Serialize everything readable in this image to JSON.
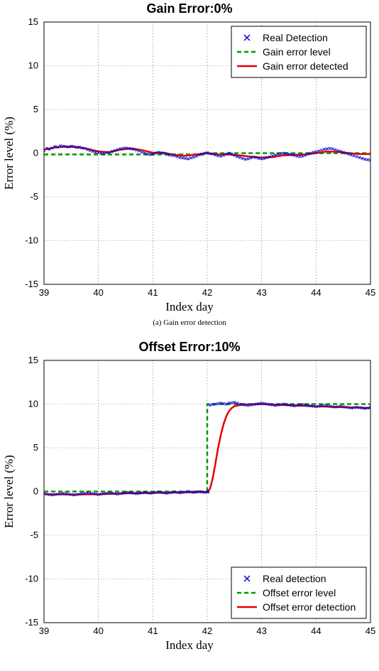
{
  "background_color": "#ffffff",
  "chart_a": {
    "type": "line",
    "title": "Gain Error:0%",
    "title_fontsize": 18,
    "title_fontweight": "bold",
    "caption": "(a) Gain error detection",
    "xlabel": "Index day",
    "ylabel": "Error level (%)",
    "label_fontsize": 17,
    "tick_fontsize": 13,
    "xlim": [
      39,
      45
    ],
    "ylim": [
      -15,
      15
    ],
    "xtick_step": 1,
    "ytick_step": 5,
    "grid_color": "#404040",
    "grid_dash": "1,3",
    "axis_color": "#000000",
    "plot_bg": "#ffffff",
    "legend": {
      "position": "top-right",
      "border_color": "#000000",
      "bg_color": "#ffffff",
      "fontsize": 14,
      "items": [
        {
          "label": "Real Detection",
          "type": "marker",
          "marker": "x",
          "color": "#0000cc"
        },
        {
          "label": "Gain error level",
          "type": "line",
          "dash": "6,4",
          "width": 2.5,
          "color": "#009900"
        },
        {
          "label": "Gain error detected",
          "type": "line",
          "dash": "none",
          "width": 2.5,
          "color": "#e60000"
        }
      ]
    },
    "series_real": {
      "name": "Real Detection",
      "color": "#0000cc",
      "marker": "x",
      "marker_size": 3.5,
      "data": [
        [
          39.0,
          0.3
        ],
        [
          39.05,
          0.55
        ],
        [
          39.1,
          0.45
        ],
        [
          39.15,
          0.6
        ],
        [
          39.2,
          0.75
        ],
        [
          39.25,
          0.7
        ],
        [
          39.3,
          0.85
        ],
        [
          39.35,
          0.8
        ],
        [
          39.4,
          0.75
        ],
        [
          39.45,
          0.7
        ],
        [
          39.5,
          0.8
        ],
        [
          39.55,
          0.75
        ],
        [
          39.6,
          0.65
        ],
        [
          39.65,
          0.7
        ],
        [
          39.7,
          0.6
        ],
        [
          39.75,
          0.55
        ],
        [
          39.8,
          0.4
        ],
        [
          39.85,
          0.3
        ],
        [
          39.9,
          0.2
        ],
        [
          39.95,
          0.1
        ],
        [
          40.0,
          0.05
        ],
        [
          40.05,
          0.0
        ],
        [
          40.1,
          -0.05
        ],
        [
          40.15,
          0.05
        ],
        [
          40.2,
          0.1
        ],
        [
          40.25,
          0.2
        ],
        [
          40.3,
          0.3
        ],
        [
          40.35,
          0.4
        ],
        [
          40.4,
          0.5
        ],
        [
          40.45,
          0.55
        ],
        [
          40.5,
          0.6
        ],
        [
          40.55,
          0.55
        ],
        [
          40.6,
          0.5
        ],
        [
          40.65,
          0.45
        ],
        [
          40.7,
          0.35
        ],
        [
          40.75,
          0.25
        ],
        [
          40.8,
          0.1
        ],
        [
          40.85,
          0.0
        ],
        [
          40.9,
          -0.1
        ],
        [
          40.95,
          -0.15
        ],
        [
          41.0,
          -0.1
        ],
        [
          41.05,
          0.0
        ],
        [
          41.1,
          0.1
        ],
        [
          41.15,
          0.05
        ],
        [
          41.2,
          0.0
        ],
        [
          41.25,
          -0.1
        ],
        [
          41.3,
          -0.2
        ],
        [
          41.35,
          -0.25
        ],
        [
          41.4,
          -0.3
        ],
        [
          41.45,
          -0.4
        ],
        [
          41.5,
          -0.5
        ],
        [
          41.55,
          -0.55
        ],
        [
          41.6,
          -0.6
        ],
        [
          41.65,
          -0.65
        ],
        [
          41.7,
          -0.55
        ],
        [
          41.75,
          -0.45
        ],
        [
          41.8,
          -0.35
        ],
        [
          41.85,
          -0.2
        ],
        [
          41.9,
          -0.1
        ],
        [
          41.95,
          0.0
        ],
        [
          42.0,
          0.05
        ],
        [
          42.05,
          -0.05
        ],
        [
          42.1,
          -0.1
        ],
        [
          42.15,
          -0.2
        ],
        [
          42.2,
          -0.3
        ],
        [
          42.25,
          -0.35
        ],
        [
          42.3,
          -0.25
        ],
        [
          42.35,
          -0.1
        ],
        [
          42.4,
          0.0
        ],
        [
          42.45,
          -0.1
        ],
        [
          42.5,
          -0.25
        ],
        [
          42.55,
          -0.4
        ],
        [
          42.6,
          -0.5
        ],
        [
          42.65,
          -0.6
        ],
        [
          42.7,
          -0.7
        ],
        [
          42.75,
          -0.65
        ],
        [
          42.8,
          -0.55
        ],
        [
          42.85,
          -0.45
        ],
        [
          42.9,
          -0.5
        ],
        [
          42.95,
          -0.6
        ],
        [
          43.0,
          -0.65
        ],
        [
          43.05,
          -0.6
        ],
        [
          43.1,
          -0.5
        ],
        [
          43.15,
          -0.4
        ],
        [
          43.2,
          -0.3
        ],
        [
          43.25,
          -0.2
        ],
        [
          43.3,
          -0.1
        ],
        [
          43.35,
          -0.05
        ],
        [
          43.4,
          0.0
        ],
        [
          43.45,
          -0.05
        ],
        [
          43.5,
          -0.1
        ],
        [
          43.55,
          -0.15
        ],
        [
          43.6,
          -0.25
        ],
        [
          43.65,
          -0.35
        ],
        [
          43.7,
          -0.4
        ],
        [
          43.75,
          -0.35
        ],
        [
          43.8,
          -0.25
        ],
        [
          43.85,
          -0.1
        ],
        [
          43.9,
          0.0
        ],
        [
          43.95,
          0.1
        ],
        [
          44.0,
          0.15
        ],
        [
          44.05,
          0.25
        ],
        [
          44.1,
          0.35
        ],
        [
          44.15,
          0.45
        ],
        [
          44.2,
          0.5
        ],
        [
          44.25,
          0.55
        ],
        [
          44.3,
          0.5
        ],
        [
          44.35,
          0.4
        ],
        [
          44.4,
          0.3
        ],
        [
          44.45,
          0.2
        ],
        [
          44.5,
          0.1
        ],
        [
          44.55,
          0.0
        ],
        [
          44.6,
          -0.1
        ],
        [
          44.65,
          -0.2
        ],
        [
          44.7,
          -0.3
        ],
        [
          44.75,
          -0.4
        ],
        [
          44.8,
          -0.5
        ],
        [
          44.85,
          -0.6
        ],
        [
          44.9,
          -0.7
        ],
        [
          44.95,
          -0.75
        ],
        [
          45.0,
          -0.8
        ]
      ]
    },
    "series_level": {
      "name": "Gain error level",
      "color": "#009900",
      "dash": "6,4",
      "width": 2.5,
      "data": [
        [
          39.0,
          -0.15
        ],
        [
          40.0,
          -0.15
        ],
        [
          41.0,
          -0.15
        ],
        [
          42.0,
          -0.15
        ],
        [
          42.0,
          0.0
        ],
        [
          45.0,
          0.0
        ]
      ]
    },
    "series_detected": {
      "name": "Gain error detected",
      "color": "#e60000",
      "dash": "none",
      "width": 2.5,
      "data": [
        [
          39.0,
          0.4
        ],
        [
          39.2,
          0.65
        ],
        [
          39.4,
          0.75
        ],
        [
          39.6,
          0.7
        ],
        [
          39.8,
          0.5
        ],
        [
          40.0,
          0.2
        ],
        [
          40.2,
          0.1
        ],
        [
          40.4,
          0.4
        ],
        [
          40.6,
          0.55
        ],
        [
          40.8,
          0.35
        ],
        [
          41.0,
          0.05
        ],
        [
          41.2,
          0.05
        ],
        [
          41.4,
          -0.2
        ],
        [
          41.6,
          -0.3
        ],
        [
          41.8,
          -0.15
        ],
        [
          42.0,
          0.0
        ],
        [
          42.2,
          -0.15
        ],
        [
          42.4,
          -0.15
        ],
        [
          42.6,
          -0.25
        ],
        [
          42.8,
          -0.4
        ],
        [
          43.0,
          -0.5
        ],
        [
          43.2,
          -0.45
        ],
        [
          43.4,
          -0.25
        ],
        [
          43.6,
          -0.2
        ],
        [
          43.8,
          -0.15
        ],
        [
          44.0,
          0.0
        ],
        [
          44.2,
          0.2
        ],
        [
          44.4,
          0.15
        ],
        [
          44.6,
          0.0
        ],
        [
          44.8,
          -0.1
        ],
        [
          45.0,
          -0.1
        ]
      ]
    }
  },
  "chart_b": {
    "type": "line",
    "title": "Offset Error:10%",
    "title_fontsize": 18,
    "title_fontweight": "bold",
    "xlabel": "Index day",
    "ylabel": "Error level (%)",
    "label_fontsize": 17,
    "tick_fontsize": 13,
    "xlim": [
      39,
      45
    ],
    "ylim": [
      -15,
      15
    ],
    "xtick_step": 1,
    "ytick_step": 5,
    "grid_color": "#404040",
    "grid_dash": "1,3",
    "axis_color": "#000000",
    "plot_bg": "#ffffff",
    "legend": {
      "position": "bottom-right",
      "border_color": "#000000",
      "bg_color": "#ffffff",
      "fontsize": 14,
      "items": [
        {
          "label": "Real detection",
          "type": "marker",
          "marker": "x",
          "color": "#0000cc"
        },
        {
          "label": "Offset error level",
          "type": "line",
          "dash": "6,4",
          "width": 2.5,
          "color": "#009900"
        },
        {
          "label": "Offset error detection",
          "type": "line",
          "dash": "none",
          "width": 2.5,
          "color": "#e60000"
        }
      ]
    },
    "series_real": {
      "name": "Real detection",
      "color": "#0000cc",
      "marker": "x",
      "marker_size": 3.5,
      "data": [
        [
          39.0,
          -0.2
        ],
        [
          39.05,
          -0.3
        ],
        [
          39.1,
          -0.35
        ],
        [
          39.15,
          -0.4
        ],
        [
          39.2,
          -0.35
        ],
        [
          39.25,
          -0.3
        ],
        [
          39.3,
          -0.25
        ],
        [
          39.35,
          -0.2
        ],
        [
          39.4,
          -0.25
        ],
        [
          39.45,
          -0.3
        ],
        [
          39.5,
          -0.35
        ],
        [
          39.55,
          -0.4
        ],
        [
          39.6,
          -0.35
        ],
        [
          39.65,
          -0.3
        ],
        [
          39.7,
          -0.25
        ],
        [
          39.75,
          -0.2
        ],
        [
          39.8,
          -0.15
        ],
        [
          39.85,
          -0.2
        ],
        [
          39.9,
          -0.25
        ],
        [
          39.95,
          -0.3
        ],
        [
          40.0,
          -0.35
        ],
        [
          40.05,
          -0.3
        ],
        [
          40.1,
          -0.25
        ],
        [
          40.15,
          -0.2
        ],
        [
          40.2,
          -0.15
        ],
        [
          40.25,
          -0.2
        ],
        [
          40.3,
          -0.25
        ],
        [
          40.35,
          -0.3
        ],
        [
          40.4,
          -0.25
        ],
        [
          40.45,
          -0.2
        ],
        [
          40.5,
          -0.15
        ],
        [
          40.55,
          -0.1
        ],
        [
          40.6,
          -0.15
        ],
        [
          40.65,
          -0.2
        ],
        [
          40.7,
          -0.25
        ],
        [
          40.75,
          -0.2
        ],
        [
          40.8,
          -0.15
        ],
        [
          40.85,
          -0.1
        ],
        [
          40.9,
          -0.15
        ],
        [
          40.95,
          -0.2
        ],
        [
          41.0,
          -0.15
        ],
        [
          41.05,
          -0.1
        ],
        [
          41.1,
          -0.05
        ],
        [
          41.15,
          -0.1
        ],
        [
          41.2,
          -0.15
        ],
        [
          41.25,
          -0.2
        ],
        [
          41.3,
          -0.15
        ],
        [
          41.35,
          -0.1
        ],
        [
          41.4,
          -0.05
        ],
        [
          41.45,
          -0.1
        ],
        [
          41.5,
          -0.15
        ],
        [
          41.55,
          -0.1
        ],
        [
          41.6,
          -0.05
        ],
        [
          41.65,
          0.0
        ],
        [
          41.7,
          -0.05
        ],
        [
          41.75,
          -0.1
        ],
        [
          41.8,
          -0.05
        ],
        [
          41.85,
          0.0
        ],
        [
          41.9,
          -0.05
        ],
        [
          41.95,
          -0.1
        ],
        [
          42.0,
          -0.05
        ],
        [
          42.02,
          -0.05
        ],
        [
          42.05,
          9.9
        ],
        [
          42.1,
          9.95
        ],
        [
          42.15,
          10.0
        ],
        [
          42.2,
          10.05
        ],
        [
          42.25,
          10.1
        ],
        [
          42.3,
          10.05
        ],
        [
          42.35,
          10.0
        ],
        [
          42.4,
          10.1
        ],
        [
          42.45,
          10.15
        ],
        [
          42.5,
          10.2
        ],
        [
          42.55,
          10.1
        ],
        [
          42.6,
          10.0
        ],
        [
          42.65,
          9.95
        ],
        [
          42.7,
          9.9
        ],
        [
          42.75,
          9.85
        ],
        [
          42.8,
          9.9
        ],
        [
          42.85,
          9.95
        ],
        [
          42.9,
          10.0
        ],
        [
          42.95,
          10.05
        ],
        [
          43.0,
          10.1
        ],
        [
          43.05,
          10.05
        ],
        [
          43.1,
          10.0
        ],
        [
          43.15,
          9.95
        ],
        [
          43.2,
          9.9
        ],
        [
          43.25,
          9.85
        ],
        [
          43.3,
          9.9
        ],
        [
          43.35,
          9.95
        ],
        [
          43.4,
          10.0
        ],
        [
          43.45,
          9.95
        ],
        [
          43.5,
          9.9
        ],
        [
          43.55,
          9.85
        ],
        [
          43.6,
          9.8
        ],
        [
          43.65,
          9.85
        ],
        [
          43.7,
          9.9
        ],
        [
          43.75,
          9.95
        ],
        [
          43.8,
          9.9
        ],
        [
          43.85,
          9.85
        ],
        [
          43.9,
          9.8
        ],
        [
          43.95,
          9.75
        ],
        [
          44.0,
          9.7
        ],
        [
          44.05,
          9.75
        ],
        [
          44.1,
          9.8
        ],
        [
          44.15,
          9.85
        ],
        [
          44.2,
          9.8
        ],
        [
          44.25,
          9.75
        ],
        [
          44.3,
          9.7
        ],
        [
          44.35,
          9.65
        ],
        [
          44.4,
          9.7
        ],
        [
          44.45,
          9.75
        ],
        [
          44.5,
          9.7
        ],
        [
          44.55,
          9.65
        ],
        [
          44.6,
          9.6
        ],
        [
          44.65,
          9.55
        ],
        [
          44.7,
          9.6
        ],
        [
          44.75,
          9.65
        ],
        [
          44.8,
          9.6
        ],
        [
          44.85,
          9.55
        ],
        [
          44.9,
          9.5
        ],
        [
          44.95,
          9.55
        ],
        [
          45.0,
          9.6
        ]
      ]
    },
    "series_level": {
      "name": "Offset error level",
      "color": "#009900",
      "dash": "6,4",
      "width": 2.5,
      "data": [
        [
          39.0,
          0.0
        ],
        [
          41.999,
          0.0
        ],
        [
          42.0,
          10.0
        ],
        [
          45.0,
          10.0
        ]
      ]
    },
    "series_detected": {
      "name": "Offset error detection",
      "color": "#e60000",
      "dash": "none",
      "width": 2.5,
      "data": [
        [
          39.0,
          -0.3
        ],
        [
          39.5,
          -0.35
        ],
        [
          40.0,
          -0.3
        ],
        [
          40.5,
          -0.2
        ],
        [
          41.0,
          -0.15
        ],
        [
          41.5,
          -0.1
        ],
        [
          41.8,
          -0.08
        ],
        [
          42.0,
          -0.05
        ],
        [
          42.05,
          0.3
        ],
        [
          42.1,
          1.5
        ],
        [
          42.15,
          3.2
        ],
        [
          42.2,
          5.0
        ],
        [
          42.25,
          6.5
        ],
        [
          42.3,
          7.7
        ],
        [
          42.35,
          8.6
        ],
        [
          42.4,
          9.2
        ],
        [
          42.45,
          9.55
        ],
        [
          42.5,
          9.75
        ],
        [
          42.6,
          9.9
        ],
        [
          42.7,
          9.95
        ],
        [
          42.8,
          9.98
        ],
        [
          43.0,
          10.0
        ],
        [
          43.3,
          9.92
        ],
        [
          43.6,
          9.85
        ],
        [
          44.0,
          9.75
        ],
        [
          44.3,
          9.68
        ],
        [
          44.6,
          9.62
        ],
        [
          45.0,
          9.55
        ]
      ]
    }
  }
}
